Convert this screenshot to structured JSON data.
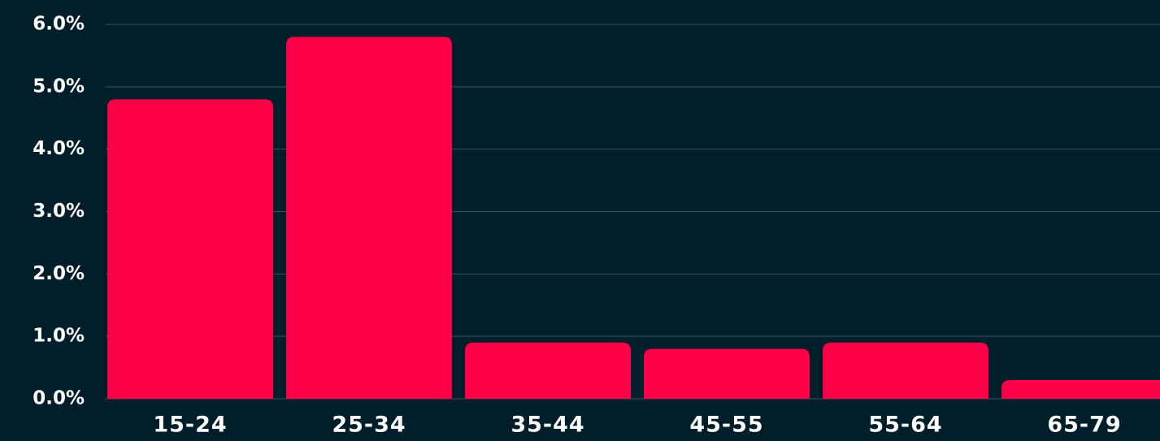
{
  "chart_data": {
    "type": "bar",
    "categories": [
      "15-24",
      "25-34",
      "35-44",
      "45-55",
      "55-64",
      "65-79"
    ],
    "values": [
      4.8,
      5.8,
      0.9,
      0.8,
      0.9,
      0.3
    ],
    "color": "#ff0048",
    "ylim": [
      0,
      6
    ],
    "yticks": [
      {
        "value": 0,
        "label": "0.0%"
      },
      {
        "value": 1,
        "label": "1.0%"
      },
      {
        "value": 2,
        "label": "2.0%"
      },
      {
        "value": 3,
        "label": "3.0%"
      },
      {
        "value": 4,
        "label": "4.0%"
      },
      {
        "value": 5,
        "label": "5.0%"
      },
      {
        "value": 6,
        "label": "6.0%"
      }
    ],
    "grid": true
  }
}
